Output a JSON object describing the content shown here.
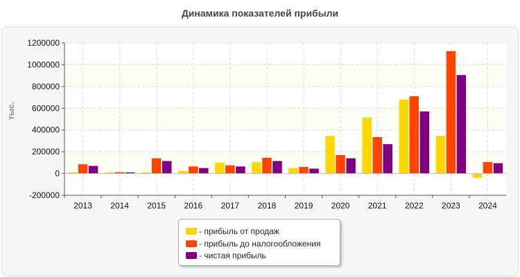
{
  "chart_data": {
    "type": "bar",
    "title": "Динамика показателей прибыли",
    "ylabel": "тыс.",
    "xlabel": "",
    "ylim": [
      -200000,
      1200000
    ],
    "yticks": [
      "-200000",
      "0",
      "200000",
      "400000",
      "600000",
      "800000",
      "1000000",
      "1200000"
    ],
    "grid": true,
    "legend_position": "bottom",
    "categories": [
      "2013",
      "2014",
      "2015",
      "2016",
      "2017",
      "2018",
      "2019",
      "2020",
      "2021",
      "2022",
      "2023",
      "2024"
    ],
    "series": [
      {
        "name": "- прибыль от продаж",
        "color": "#ffd700",
        "values": [
          10000,
          10000,
          10000,
          25000,
          100000,
          105000,
          50000,
          345000,
          515000,
          680000,
          345000,
          -40000
        ]
      },
      {
        "name": "- прибыль до налогообложения",
        "color": "#ff4500",
        "values": [
          85000,
          12000,
          140000,
          65000,
          75000,
          145000,
          60000,
          170000,
          335000,
          710000,
          1125000,
          105000
        ]
      },
      {
        "name": "- чистая прибыль",
        "color": "#800080",
        "values": [
          70000,
          10000,
          115000,
          50000,
          65000,
          115000,
          45000,
          140000,
          270000,
          570000,
          905000,
          95000
        ]
      }
    ]
  }
}
